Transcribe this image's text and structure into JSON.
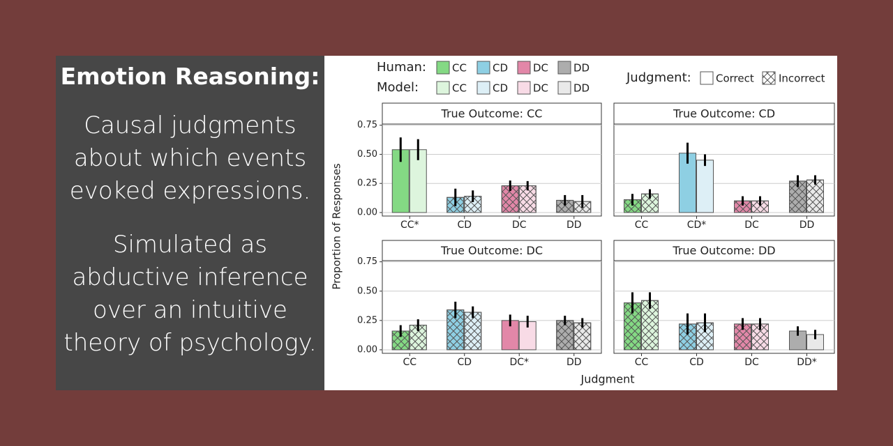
{
  "panel": {
    "title": "Emotion Reasoning:",
    "paragraphs": [
      [
        "Causal judgments",
        "about which events",
        "evoked expressions."
      ],
      [
        "Simulated as",
        "abductive inference",
        "over an intuitive",
        "theory of psychology."
      ]
    ]
  },
  "chart_data": {
    "type": "bar",
    "y_label": "Proportion of Responses",
    "x_label": "Judgment",
    "ylim": [
      -0.03,
      0.76
    ],
    "yticks": [
      {
        "value": 0,
        "label": "0.00"
      },
      {
        "value": 0.25,
        "label": "0.25"
      },
      {
        "value": 0.5,
        "label": "0.50"
      },
      {
        "value": 0.75,
        "label": "0.75"
      }
    ],
    "grid": true,
    "legend": {
      "human_label": "Human:",
      "model_label": "Model:",
      "entries": [
        {
          "label": "CC",
          "human_color": "#84d984",
          "model_color": "#ddf5dd"
        },
        {
          "label": "CD",
          "human_color": "#8ecfe3",
          "model_color": "#ddeff6"
        },
        {
          "label": "DC",
          "human_color": "#e287a8",
          "model_color": "#f8dbe6"
        },
        {
          "label": "DD",
          "human_color": "#adadad",
          "model_color": "#e9e9e9"
        }
      ],
      "judgment_label": "Judgment:",
      "correct_label": "Correct",
      "incorrect_label": "Incorrect"
    },
    "facets": [
      {
        "title": "True Outcome: CC",
        "categories": [
          "CC*",
          "CD",
          "DC",
          "DD"
        ],
        "correct_index": 0,
        "series": [
          {
            "values": [
              0.54,
              0.13,
              0.23,
              0.105
            ],
            "errors": [
              0.105,
              0.075,
              0.045,
              0.045
            ]
          },
          {
            "values": [
              0.54,
              0.14,
              0.23,
              0.095
            ],
            "errors": [
              0.09,
              0.05,
              0.04,
              0.055
            ]
          }
        ]
      },
      {
        "title": "True Outcome: CD",
        "categories": [
          "CC",
          "CD*",
          "DC",
          "DD"
        ],
        "correct_index": 1,
        "series": [
          {
            "values": [
              0.11,
              0.51,
              0.1,
              0.27
            ],
            "errors": [
              0.05,
              0.09,
              0.04,
              0.05
            ]
          },
          {
            "values": [
              0.16,
              0.45,
              0.1,
              0.28
            ],
            "errors": [
              0.04,
              0.05,
              0.04,
              0.04
            ]
          }
        ]
      },
      {
        "title": "True Outcome: DC",
        "categories": [
          "CC",
          "CD",
          "DC*",
          "DD"
        ],
        "correct_index": 2,
        "series": [
          {
            "values": [
              0.16,
              0.34,
              0.25,
              0.25
            ],
            "errors": [
              0.05,
              0.07,
              0.05,
              0.04
            ]
          },
          {
            "values": [
              0.21,
              0.32,
              0.24,
              0.23
            ],
            "errors": [
              0.05,
              0.05,
              0.05,
              0.04
            ]
          }
        ]
      },
      {
        "title": "True Outcome: DD",
        "categories": [
          "CC",
          "CD",
          "DC",
          "DD*"
        ],
        "correct_index": 3,
        "series": [
          {
            "values": [
              0.4,
              0.22,
              0.22,
              0.16
            ],
            "errors": [
              0.09,
              0.09,
              0.05,
              0.04
            ]
          },
          {
            "values": [
              0.42,
              0.23,
              0.22,
              0.13
            ],
            "errors": [
              0.07,
              0.08,
              0.05,
              0.04
            ]
          }
        ]
      }
    ]
  }
}
